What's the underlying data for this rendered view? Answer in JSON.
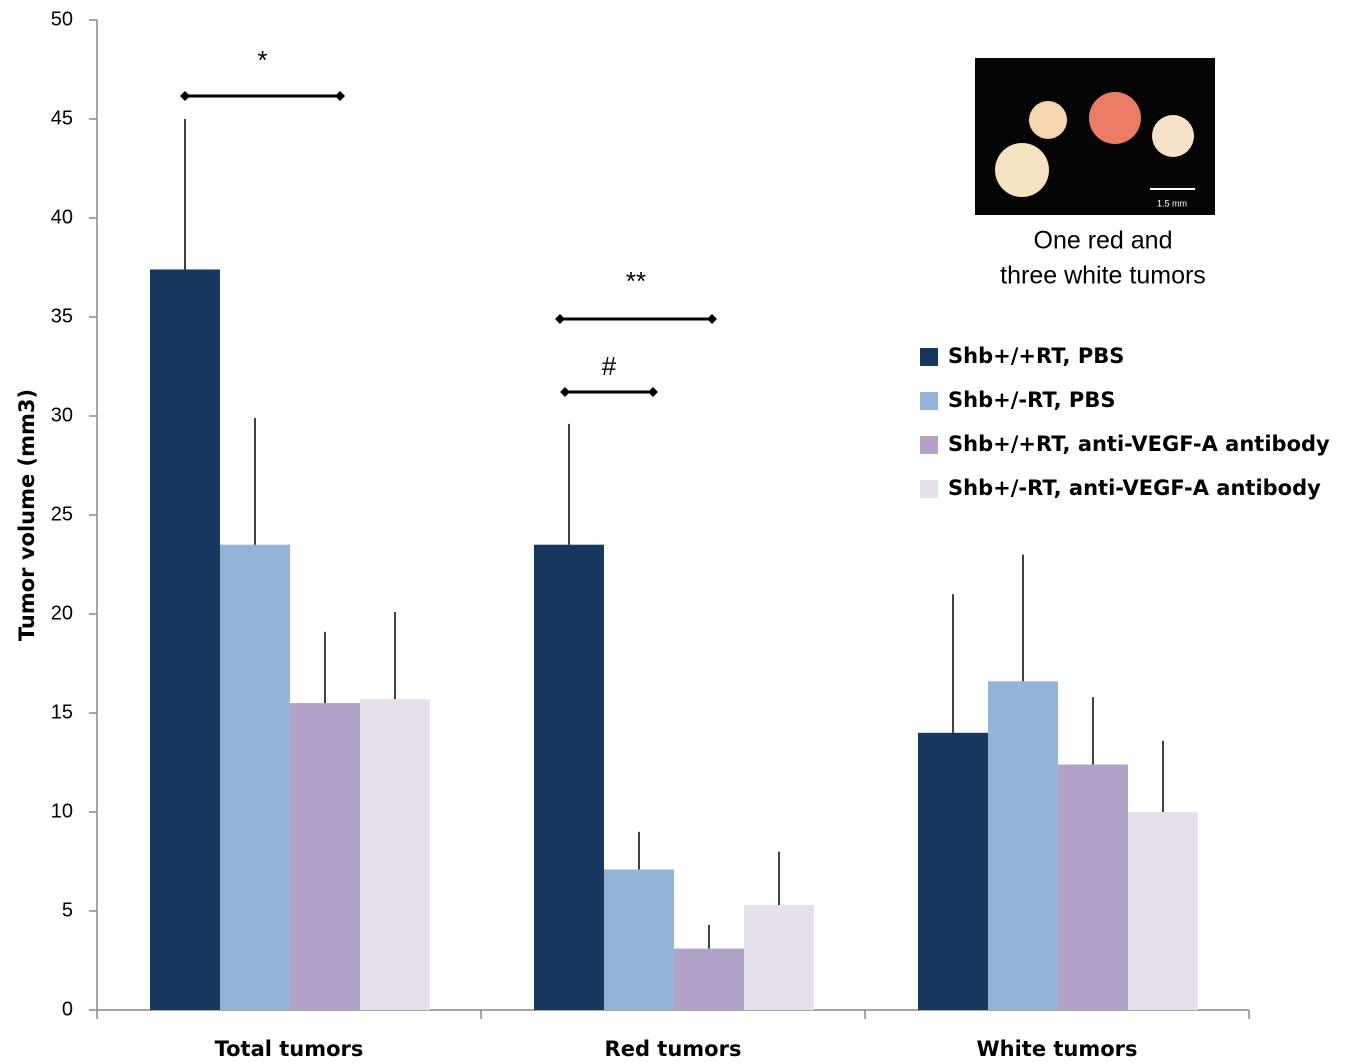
{
  "chart_data": {
    "type": "bar",
    "y_label": "Tumor volume (mm3)",
    "categories": [
      "Total tumors",
      "Red tumors",
      "White tumors"
    ],
    "series": [
      {
        "name": "Shb+/+RT, PBS",
        "color": "#17375e",
        "values": [
          37.4,
          23.5,
          14.0
        ],
        "errors": [
          7.6,
          6.1,
          7.0
        ]
      },
      {
        "name": "Shb+/-RT, PBS",
        "color": "#95b3d7",
        "values": [
          23.5,
          7.1,
          16.6
        ],
        "errors": [
          6.4,
          1.9,
          6.4
        ]
      },
      {
        "name": "Shb+/+RT, anti-VEGF-A antibody",
        "color": "#b3a2c7",
        "values": [
          15.5,
          3.1,
          12.4
        ],
        "errors": [
          3.6,
          1.2,
          3.4
        ]
      },
      {
        "name": "Shb+/-RT, anti-VEGF-A antibody",
        "color": "#e6e0ec",
        "values": [
          15.7,
          5.3,
          10.0
        ],
        "errors": [
          4.4,
          2.7,
          3.6
        ]
      }
    ],
    "ylim": [
      0,
      50
    ],
    "yticks": [
      0,
      5,
      10,
      15,
      20,
      25,
      30,
      35,
      40,
      45,
      50
    ],
    "annotations": [
      "*",
      "**",
      "#"
    ],
    "inset_caption": [
      "One red and",
      "three white tumors"
    ],
    "scale_bar_label": "1.5 mm"
  }
}
